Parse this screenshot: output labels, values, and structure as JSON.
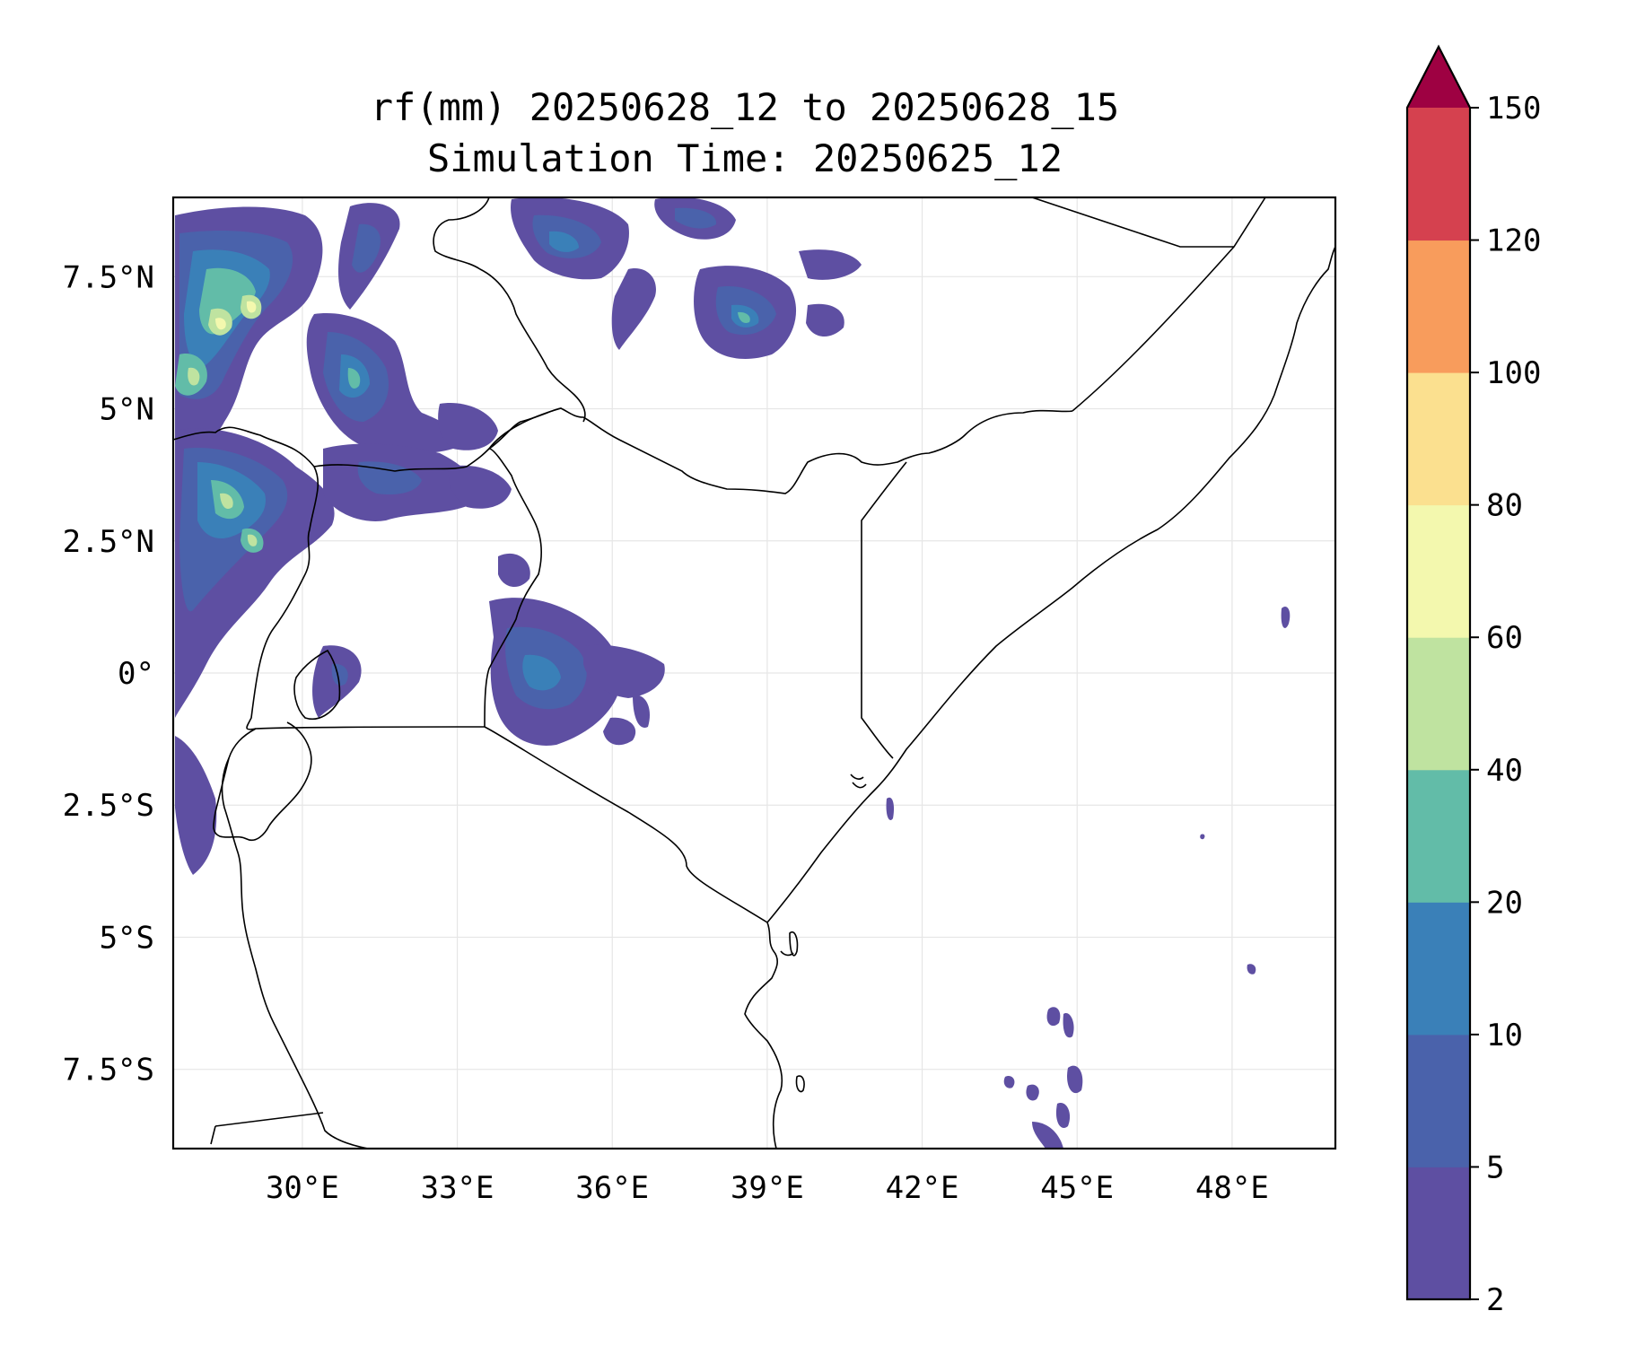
{
  "title_line1": "rf(mm) 20250628_12 to 20250628_15",
  "title_line2": "Simulation Time: 20250625_12",
  "map": {
    "lon_range": [
      27.5,
      50.0
    ],
    "lat_range": [
      -9.0,
      9.0
    ],
    "lon_ticks": [
      "30°E",
      "33°E",
      "36°E",
      "39°E",
      "42°E",
      "45°E",
      "48°E"
    ],
    "lat_ticks": [
      "7.5°N",
      "5°N",
      "2.5°N",
      "0°",
      "2.5°S",
      "5°S",
      "7.5°S"
    ],
    "gridlines": true
  },
  "colorbar": {
    "levels": [
      "2",
      "5",
      "10",
      "20",
      "40",
      "60",
      "80",
      "100",
      "120",
      "150"
    ],
    "colors": [
      "#5e4fa2",
      "#4a62ab",
      "#3a80b8",
      "#62bca8",
      "#bfe3a0",
      "#f3f8ae",
      "#fbe08f",
      "#f89c5c",
      "#d5414f"
    ],
    "extend_color": "#9e0142",
    "extend": "max"
  }
}
